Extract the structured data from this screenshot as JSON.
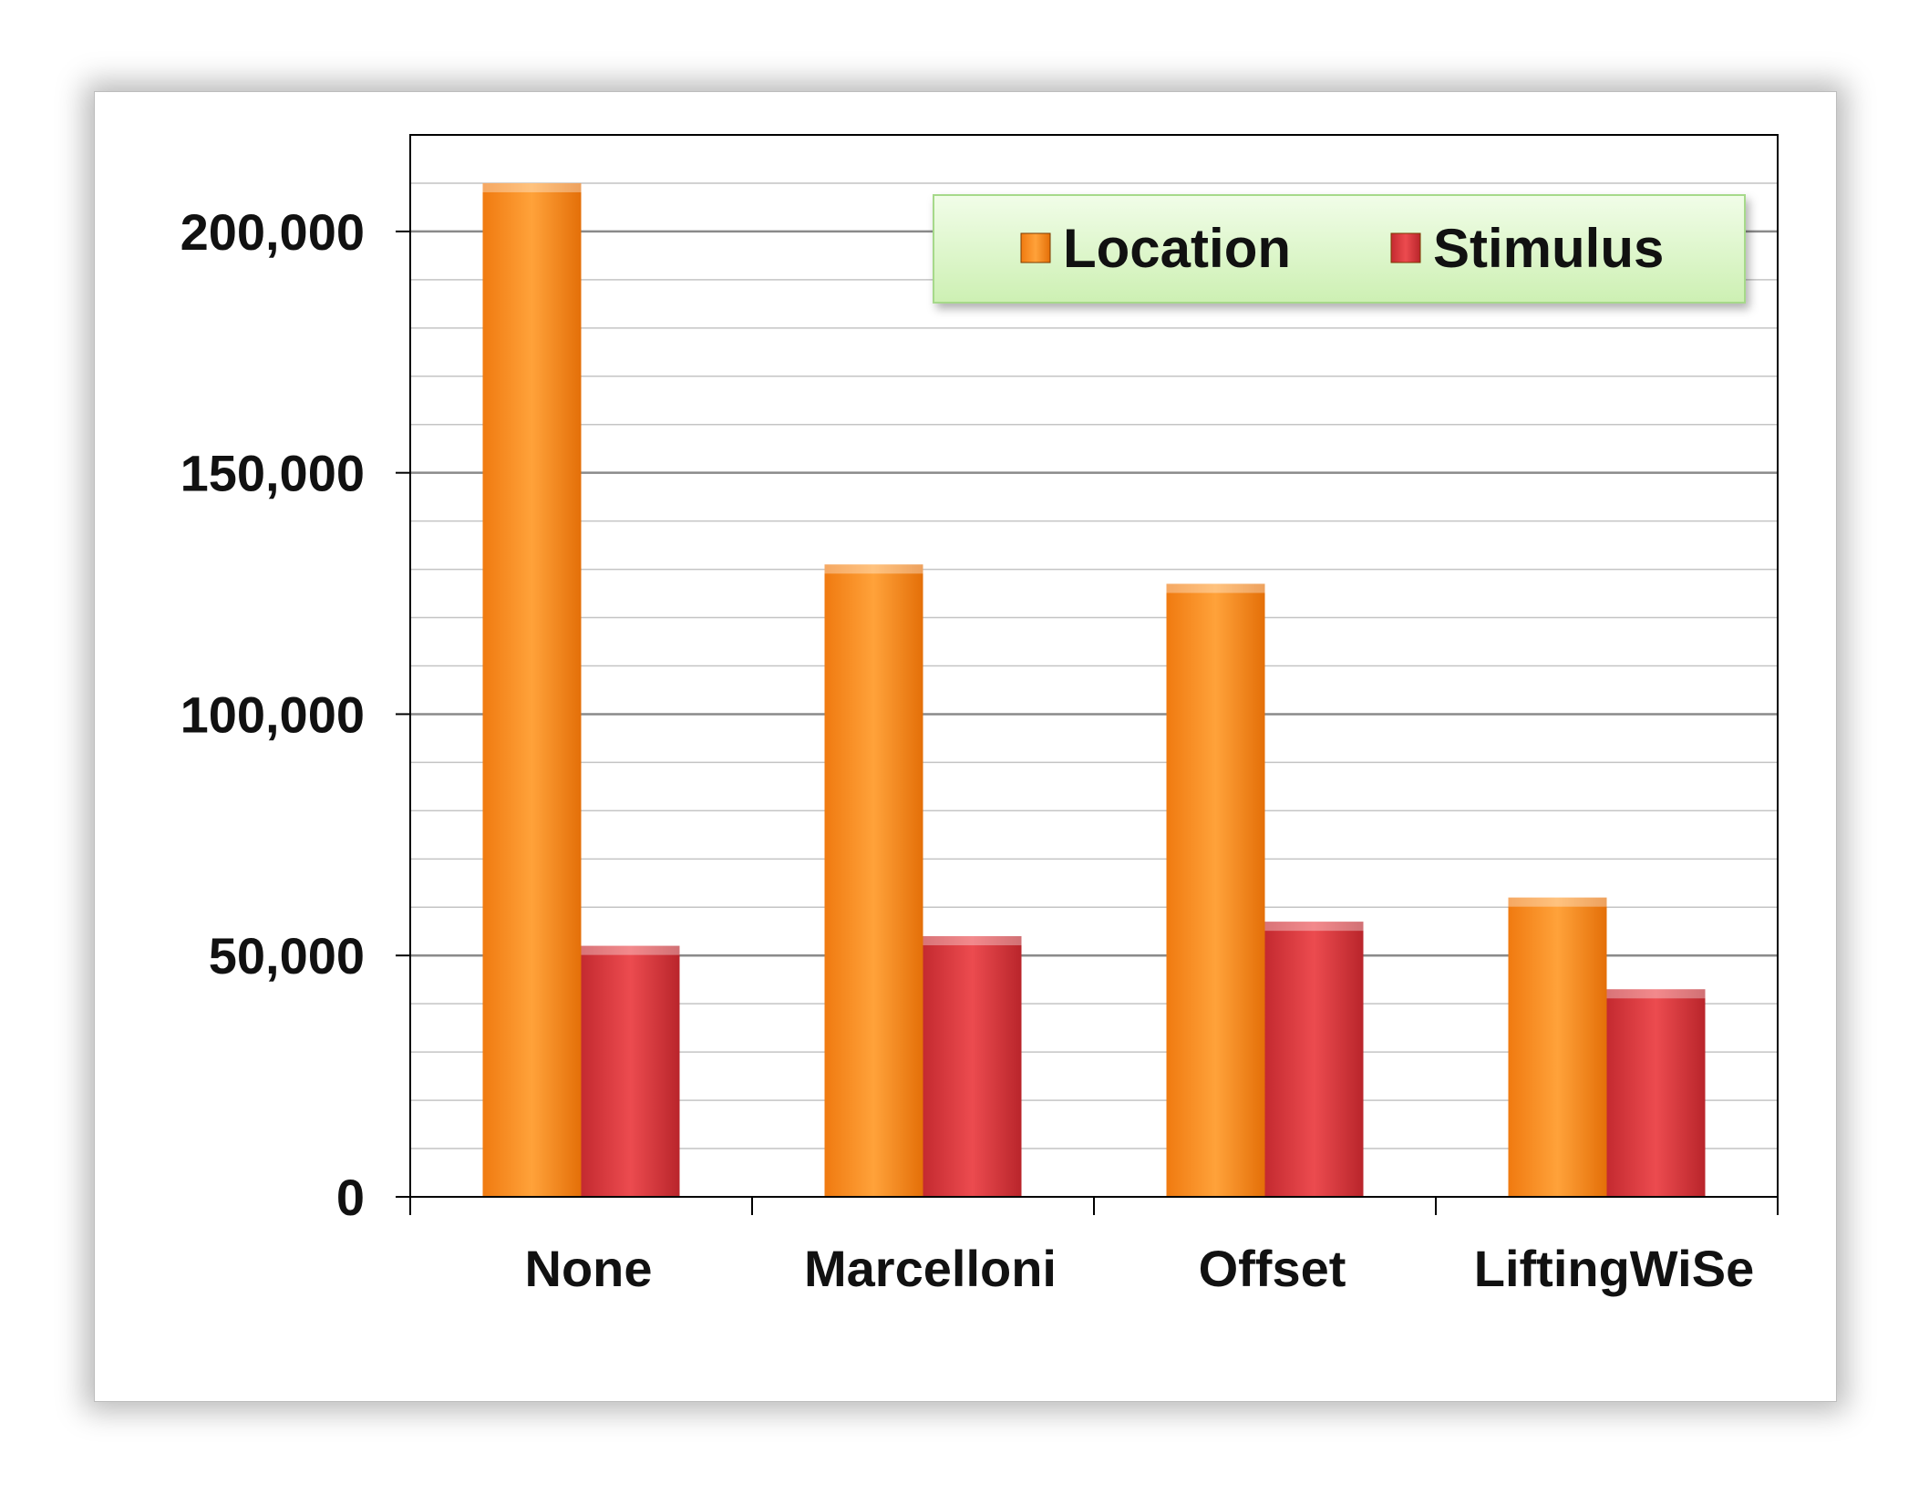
{
  "chart_data": {
    "type": "bar",
    "title": "",
    "xlabel": "",
    "ylabel": "",
    "categories": [
      "None",
      "Marcelloni",
      "Offset",
      "LiftingWiSe"
    ],
    "series": [
      {
        "name": "Location",
        "values": [
          210000,
          131000,
          127000,
          62000
        ],
        "color": "#ff8c1a"
      },
      {
        "name": "Stimulus",
        "values": [
          52000,
          54000,
          57000,
          43000
        ],
        "color": "#d9363b"
      }
    ],
    "ylim": [
      0,
      220000
    ],
    "yticks": [
      0,
      50000,
      100000,
      150000,
      200000
    ],
    "ytick_labels": [
      "0",
      "50,000",
      "100,000",
      "150,000",
      "200,000"
    ],
    "grid": true,
    "minor_grid_step": 10000,
    "legend_position": "top-right",
    "legend_background": "#d9f7c4"
  }
}
